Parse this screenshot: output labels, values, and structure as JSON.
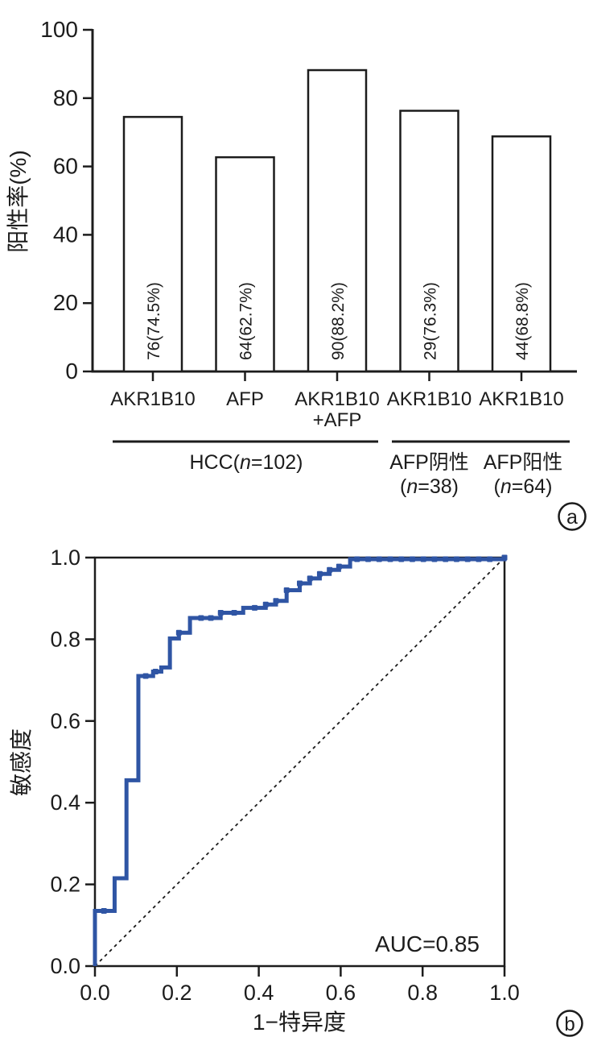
{
  "figure": {
    "panel_a_letter": "a",
    "panel_b_letter": "b"
  },
  "colors": {
    "axis": "#1c1c1c",
    "bar_fill": "#ffffff",
    "bar_stroke": "#1c1c1c",
    "roc_curve": "#2f55a4"
  },
  "chart_data": [
    {
      "type": "bar",
      "panel": "a",
      "ylabel": "阳性率(%)",
      "ylim": [
        0,
        100
      ],
      "yticks": [
        0,
        20,
        40,
        60,
        80,
        100
      ],
      "categories": [
        "AKR1B10",
        "AFP",
        "AKR1B10\n+AFP",
        "AKR1B10",
        "AKR1B10"
      ],
      "values": [
        74.5,
        62.7,
        88.2,
        76.3,
        68.8
      ],
      "bar_labels": [
        "76(74.5%)",
        "64(62.7%)",
        "90(88.2%)",
        "29(76.3%)",
        "44(68.8%)"
      ],
      "groups": [
        {
          "label": [
            {
              "t": "HCC("
            },
            {
              "t": "n",
              "italic": true
            },
            {
              "t": "=102)"
            }
          ],
          "bars": [
            0,
            2
          ]
        },
        {
          "label": [
            {
              "t": "AFP阴性"
            }
          ],
          "sub": [
            {
              "t": "("
            },
            {
              "t": "n",
              "italic": true
            },
            {
              "t": "=38)"
            }
          ],
          "bars": [
            3,
            3
          ]
        },
        {
          "label": [
            {
              "t": "AFP阳性"
            }
          ],
          "sub": [
            {
              "t": "("
            },
            {
              "t": "n",
              "italic": true
            },
            {
              "t": "=64)"
            }
          ],
          "bars": [
            4,
            4
          ]
        }
      ],
      "grid": false,
      "legend": false
    },
    {
      "type": "line",
      "panel": "b",
      "subtype": "roc-step-curve",
      "xlabel": "1−特异度",
      "ylabel": "敏感度",
      "xlim": [
        0,
        1
      ],
      "ylim": [
        0,
        1
      ],
      "xticks": [
        "0.0",
        "0.2",
        "0.4",
        "0.6",
        "0.8",
        "1.0"
      ],
      "yticks": [
        "0.0",
        "0.2",
        "0.4",
        "0.6",
        "0.8",
        "1.0"
      ],
      "annotation": "AUC=0.85",
      "auc": 0.85,
      "diagonal_reference": "dashed",
      "frame": "full-box",
      "roc_points": [
        [
          0,
          0
        ],
        [
          0,
          0.135
        ],
        [
          0.048,
          0.135
        ],
        [
          0.048,
          0.215
        ],
        [
          0.077,
          0.215
        ],
        [
          0.077,
          0.455
        ],
        [
          0.106,
          0.455
        ],
        [
          0.106,
          0.71
        ],
        [
          0.142,
          0.71
        ],
        [
          0.142,
          0.721
        ],
        [
          0.162,
          0.721
        ],
        [
          0.162,
          0.731
        ],
        [
          0.183,
          0.731
        ],
        [
          0.183,
          0.802
        ],
        [
          0.205,
          0.802
        ],
        [
          0.205,
          0.816
        ],
        [
          0.232,
          0.816
        ],
        [
          0.232,
          0.852
        ],
        [
          0.307,
          0.852
        ],
        [
          0.307,
          0.865
        ],
        [
          0.362,
          0.865
        ],
        [
          0.362,
          0.877
        ],
        [
          0.417,
          0.877
        ],
        [
          0.417,
          0.885
        ],
        [
          0.442,
          0.885
        ],
        [
          0.442,
          0.894
        ],
        [
          0.468,
          0.894
        ],
        [
          0.468,
          0.92
        ],
        [
          0.5,
          0.92
        ],
        [
          0.5,
          0.937
        ],
        [
          0.525,
          0.937
        ],
        [
          0.525,
          0.949
        ],
        [
          0.549,
          0.949
        ],
        [
          0.549,
          0.96
        ],
        [
          0.573,
          0.96
        ],
        [
          0.573,
          0.97
        ],
        [
          0.596,
          0.97
        ],
        [
          0.596,
          0.978
        ],
        [
          0.623,
          0.978
        ],
        [
          0.623,
          0.996
        ],
        [
          1,
          0.996
        ],
        [
          1,
          1
        ]
      ],
      "markers": [
        [
          0.022,
          0.135
        ],
        [
          0.124,
          0.71
        ],
        [
          0.148,
          0.721
        ],
        [
          0.205,
          0.816
        ],
        [
          0.259,
          0.852
        ],
        [
          0.283,
          0.852
        ],
        [
          0.307,
          0.865
        ],
        [
          0.34,
          0.865
        ],
        [
          0.39,
          0.877
        ],
        [
          0.417,
          0.885
        ],
        [
          0.442,
          0.894
        ],
        [
          0.468,
          0.92
        ],
        [
          0.5,
          0.937
        ],
        [
          0.525,
          0.949
        ],
        [
          0.549,
          0.96
        ],
        [
          0.573,
          0.97
        ],
        [
          0.596,
          0.978
        ],
        [
          0.64,
          0.996
        ],
        [
          0.667,
          0.996
        ],
        [
          0.694,
          0.996
        ],
        [
          0.721,
          0.996
        ],
        [
          0.748,
          0.996
        ],
        [
          0.775,
          0.996
        ],
        [
          0.802,
          0.996
        ],
        [
          0.829,
          0.996
        ],
        [
          0.856,
          0.996
        ],
        [
          0.883,
          0.996
        ],
        [
          0.91,
          0.996
        ],
        [
          0.937,
          0.996
        ],
        [
          0.964,
          0.996
        ],
        [
          1,
          1
        ]
      ]
    }
  ]
}
